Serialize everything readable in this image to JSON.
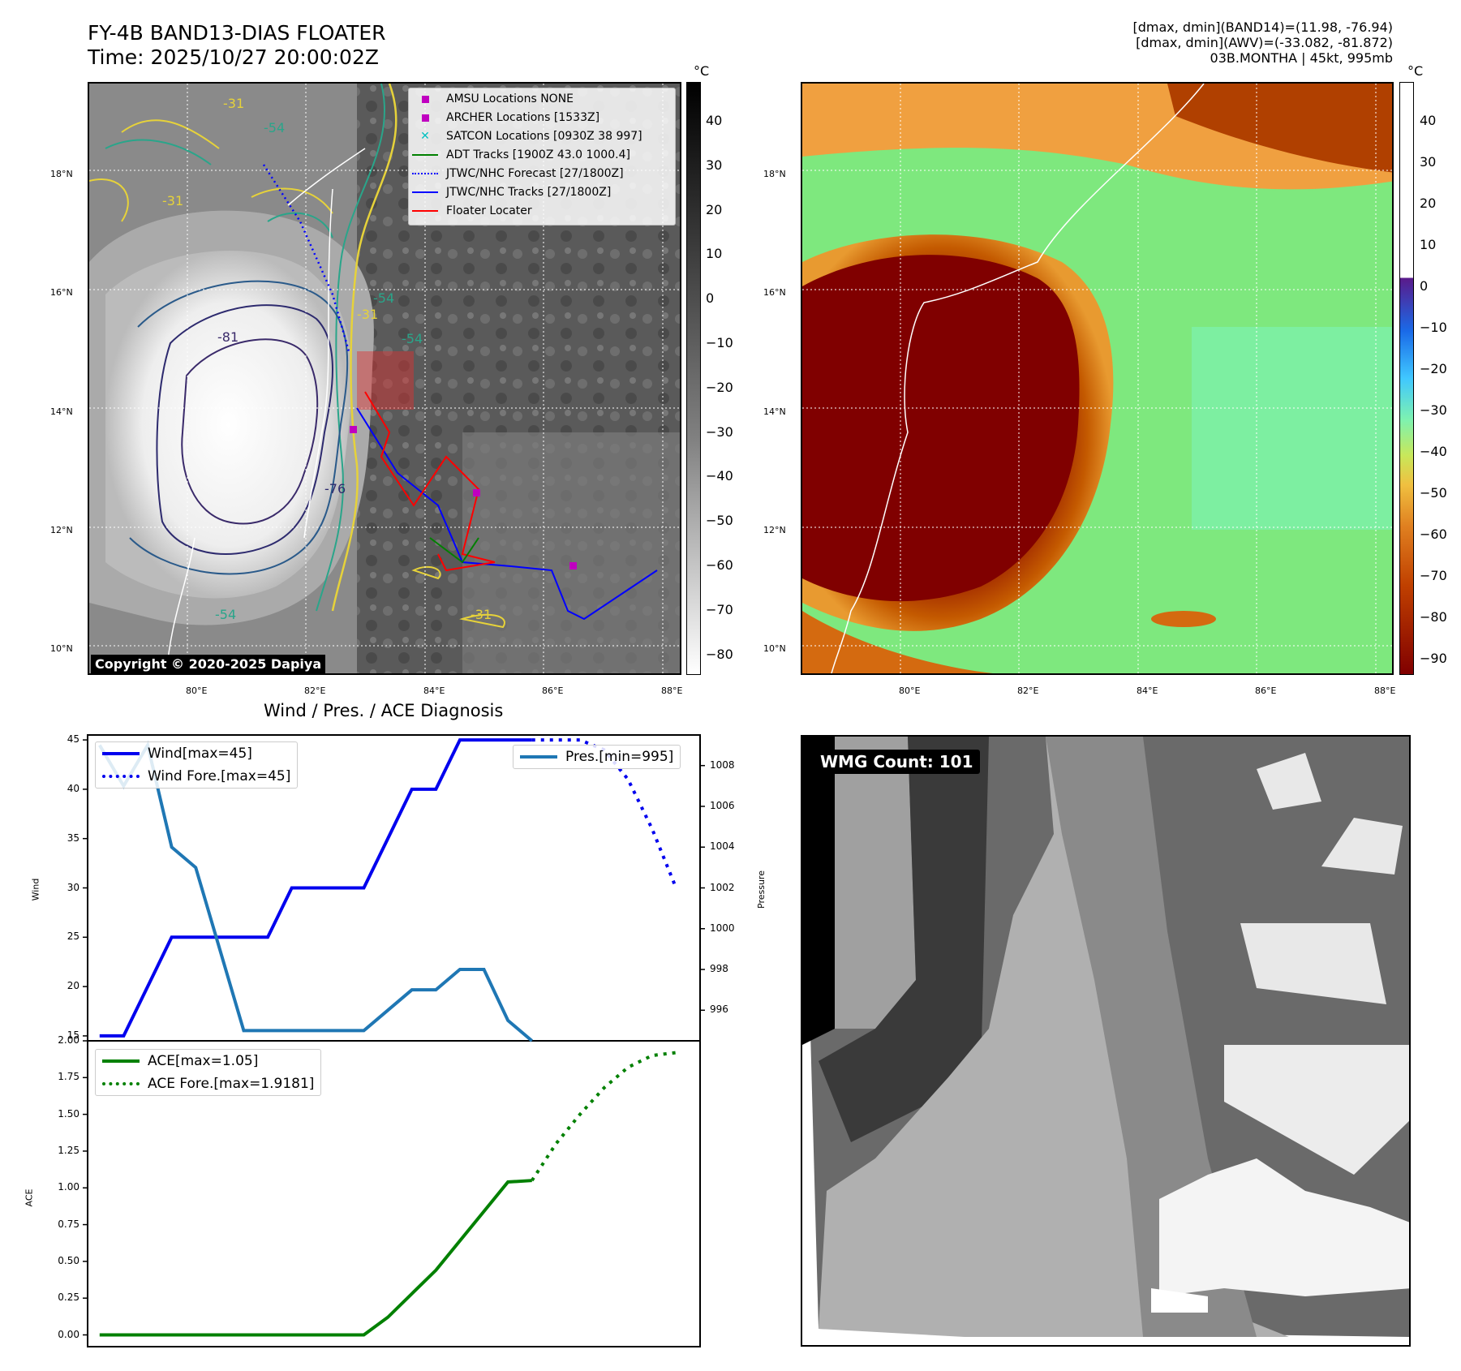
{
  "header": {
    "title_line1": "FY-4B BAND13-DIAS FLOATER",
    "title_line2": "Time: 2025/10/27 20:00:02Z",
    "stats_line1": "[dmax, dmin](BAND14)=(11.98, -76.94)",
    "stats_line2": "[dmax, dmin](AWV)=(-33.082, -81.872)",
    "stats_line3": "03B.MONTHA | 45kt, 995mb"
  },
  "map_axes": {
    "lat_labels": [
      "18°N",
      "16°N",
      "14°N",
      "12°N",
      "10°N"
    ],
    "lon_labels": [
      "80°E",
      "82°E",
      "84°E",
      "86°E",
      "88°E"
    ]
  },
  "map1": {
    "copyright": "Copyright © 2020-2025 Dapiya",
    "contour_labels": [
      "-31",
      "-54",
      "-31",
      "-54",
      "-31",
      "-81",
      "-76",
      "-54",
      "-54",
      "-31"
    ],
    "legend": [
      {
        "label": "AMSU Locations NONE",
        "color": "#c000c0"
      },
      {
        "label": "ARCHER Locations [1533Z]",
        "color": "#c000c0"
      },
      {
        "label": "SATCON Locations [0930Z 38 997]",
        "color": "#00c0c0"
      },
      {
        "label": "ADT Tracks [1900Z 43.0 1000.4]",
        "color": "#008000"
      },
      {
        "label": "JTWC/NHC Forecast [27/1800Z]",
        "color": "#0000ff"
      },
      {
        "label": "JTWC/NHC Tracks [27/1800Z]",
        "color": "#0000ff"
      },
      {
        "label": "Floater Locater",
        "color": "#ff0000"
      }
    ],
    "colorbar": {
      "unit": "°C",
      "ticks": [
        "40",
        "30",
        "20",
        "10",
        "0",
        "−10",
        "−20",
        "−30",
        "−40",
        "−50",
        "−60",
        "−70",
        "−80"
      ]
    }
  },
  "map2": {
    "colorbar": {
      "unit": "°C",
      "ticks": [
        "40",
        "30",
        "20",
        "10",
        "0",
        "−10",
        "−20",
        "−30",
        "−40",
        "−50",
        "−60",
        "−70",
        "−80",
        "−90"
      ]
    }
  },
  "wmg": {
    "label": "WMG Count: 101"
  },
  "diagnosis": {
    "title": "Wind / Pres. / ACE Diagnosis",
    "wind_axis_label": "Wind",
    "pressure_axis_label": "Pressure",
    "ace_axis_label": "ACE",
    "wind_ticks": [
      "45",
      "40",
      "35",
      "30",
      "25",
      "20",
      "15"
    ],
    "pressure_ticks": [
      "1008",
      "1006",
      "1004",
      "1002",
      "1000",
      "998",
      "996"
    ],
    "ace_ticks": [
      "2.00",
      "1.75",
      "1.50",
      "1.25",
      "1.00",
      "0.75",
      "0.50",
      "0.25",
      "0.00"
    ],
    "legend_wind": "Wind[max=45]",
    "legend_wind_fore": "Wind Fore.[max=45]",
    "legend_pres": "Pres.[min=995]",
    "legend_ace": "ACE[max=1.05]",
    "legend_ace_fore": "ACE Fore.[max=1.9181]"
  },
  "chart_data": [
    {
      "type": "line",
      "title": "Wind / Pres. / ACE Diagnosis",
      "x": [
        0,
        1,
        2,
        3,
        4,
        5,
        6,
        7,
        8,
        9,
        10,
        11,
        12,
        13,
        14,
        15,
        16,
        17,
        18
      ],
      "series": [
        {
          "name": "Wind[max=45]",
          "axis": "left",
          "values": [
            15,
            15,
            20,
            25,
            25,
            25,
            25,
            25,
            30,
            30,
            30,
            30,
            35,
            40,
            40,
            45,
            45,
            45,
            45
          ]
        },
        {
          "name": "Pres.[min=995]",
          "axis": "right",
          "values": [
            1009,
            1007,
            1009,
            1004,
            1003,
            999,
            995,
            995,
            995,
            995,
            995,
            995,
            996,
            997,
            997,
            998,
            998,
            995.5,
            994.5
          ]
        }
      ],
      "forecast": {
        "name": "Wind Fore.[max=45]",
        "x": [
          18,
          19,
          20,
          21,
          22,
          23,
          24
        ],
        "values": [
          45,
          45,
          45,
          44,
          41,
          36,
          30
        ]
      },
      "ylabel": "Wind",
      "ylim": [
        14.5,
        45.5
      ],
      "y2label": "Pressure",
      "y2lim": [
        994.5,
        1009.5
      ]
    },
    {
      "type": "line",
      "x": [
        0,
        1,
        2,
        3,
        4,
        5,
        6,
        7,
        8,
        9,
        10,
        11,
        12,
        13,
        14,
        15,
        16,
        17,
        18
      ],
      "series": [
        {
          "name": "ACE[max=1.05]",
          "values": [
            0,
            0,
            0,
            0,
            0,
            0,
            0,
            0,
            0,
            0,
            0,
            0,
            0.12,
            0.28,
            0.44,
            0.64,
            0.84,
            1.04,
            1.05
          ]
        }
      ],
      "forecast": {
        "name": "ACE Fore.[max=1.9181]",
        "x": [
          18,
          19,
          20,
          21,
          22,
          23,
          24
        ],
        "values": [
          1.05,
          1.3,
          1.5,
          1.68,
          1.82,
          1.9,
          1.92
        ]
      },
      "ylabel": "ACE",
      "ylim": [
        -0.08,
        2.0
      ]
    }
  ]
}
